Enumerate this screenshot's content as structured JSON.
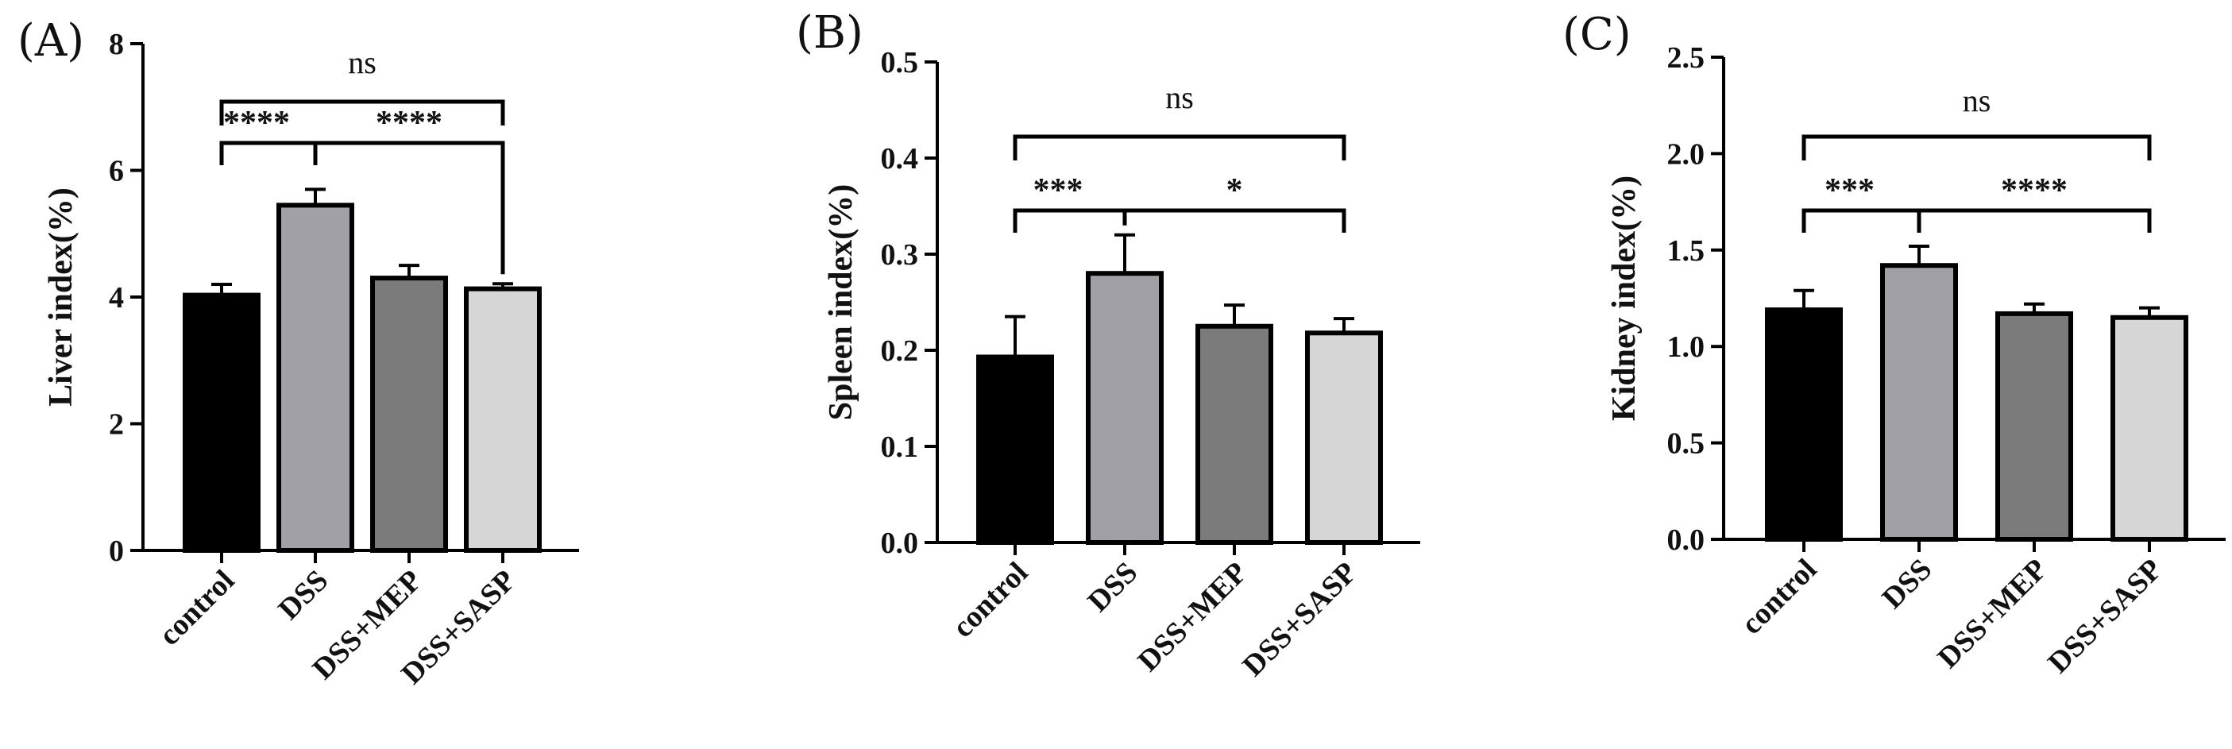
{
  "chart_data": [
    {
      "type": "bar",
      "panel_label": "(A)",
      "ylabel": "Liver index(%)",
      "xlabel": "",
      "ylim": [
        0,
        8
      ],
      "yticks": [
        "0",
        "2",
        "4",
        "6",
        "8"
      ],
      "ytick_values": [
        0,
        2,
        4,
        6,
        8
      ],
      "categories": [
        "control",
        "DSS",
        "DSS+MEP",
        "DSS+SASP"
      ],
      "values": [
        4.03,
        5.45,
        4.3,
        4.13
      ],
      "errors": [
        0.17,
        0.25,
        0.2,
        0.08
      ],
      "bar_colors": [
        "#000000",
        "#a0a0a6",
        "#7b7b7b",
        "#d6d6d6"
      ],
      "significance": [
        {
          "from": "control",
          "to": "DSS",
          "label": "****",
          "level": 1
        },
        {
          "from": "DSS",
          "to": "DSS+SASP",
          "label": "****",
          "level": 1
        },
        {
          "from": "control",
          "to": "DSS+SASP",
          "label": "ns",
          "level": 2
        }
      ]
    },
    {
      "type": "bar",
      "panel_label": "(B)",
      "ylabel": "Spleen index(%)",
      "xlabel": "",
      "ylim": [
        0,
        0.5
      ],
      "yticks": [
        "0.0",
        "0.1",
        "0.2",
        "0.3",
        "0.4",
        "0.5"
      ],
      "ytick_values": [
        0,
        0.1,
        0.2,
        0.3,
        0.4,
        0.5
      ],
      "categories": [
        "control",
        "DSS",
        "DSS+MEP",
        "DSS+SASP"
      ],
      "values": [
        0.193,
        0.28,
        0.225,
        0.218
      ],
      "errors": [
        0.042,
        0.04,
        0.022,
        0.015
      ],
      "bar_colors": [
        "#000000",
        "#a0a0a6",
        "#7b7b7b",
        "#d6d6d6"
      ],
      "significance": [
        {
          "from": "control",
          "to": "DSS",
          "label": "***",
          "level": 1
        },
        {
          "from": "DSS",
          "to": "DSS+SASP",
          "label": "*",
          "level": 1
        },
        {
          "from": "control",
          "to": "DSS+SASP",
          "label": "ns",
          "level": 2
        }
      ]
    },
    {
      "type": "bar",
      "panel_label": "(C)",
      "ylabel": "Kidney index(%)",
      "xlabel": "",
      "ylim": [
        0,
        2.5
      ],
      "yticks": [
        "0.0",
        "0.5",
        "1.0",
        "1.5",
        "2.0",
        "2.5"
      ],
      "ytick_values": [
        0,
        0.5,
        1.0,
        1.5,
        2.0,
        2.5
      ],
      "categories": [
        "control",
        "DSS",
        "DSS+MEP",
        "DSS+SASP"
      ],
      "values": [
        1.19,
        1.42,
        1.17,
        1.15
      ],
      "errors": [
        0.1,
        0.1,
        0.05,
        0.05
      ],
      "bar_colors": [
        "#000000",
        "#a0a0a6",
        "#7b7b7b",
        "#d6d6d6"
      ],
      "significance": [
        {
          "from": "control",
          "to": "DSS",
          "label": "***",
          "level": 1
        },
        {
          "from": "DSS",
          "to": "DSS+SASP",
          "label": "****",
          "level": 1
        },
        {
          "from": "control",
          "to": "DSS+SASP",
          "label": "ns",
          "level": 2
        }
      ]
    }
  ]
}
